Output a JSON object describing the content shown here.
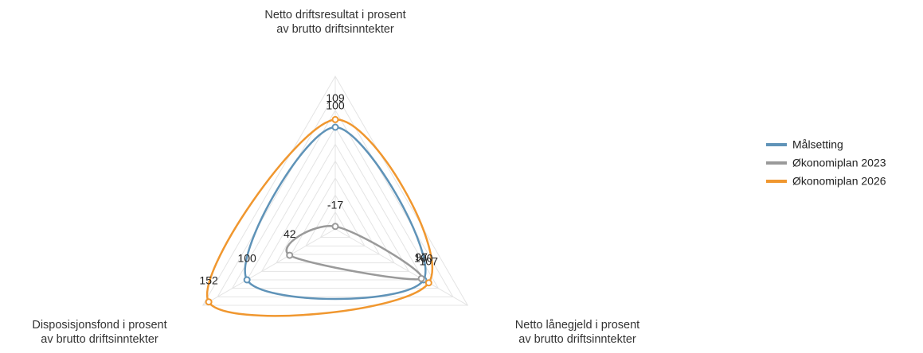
{
  "chart_data": {
    "type": "radar",
    "categories": [
      "Netto driftsresultat i prosent av brutto driftsinntekter",
      "Netto lånegjeld i prosent av brutto driftsinntekter",
      "Disposisjonsfond i prosent av brutto driftsinntekter"
    ],
    "series": [
      {
        "name": "Målsetting",
        "color": "#5f93b8",
        "values": [
          100,
          100,
          100
        ]
      },
      {
        "name": "Økonomiplan 2023",
        "color": "#9a9a9a",
        "values": [
          -17,
          97,
          42
        ]
      },
      {
        "name": "Økonomiplan 2026",
        "color": "#f0972f",
        "values": [
          109,
          107,
          152
        ]
      }
    ],
    "ylim": [
      -20,
      160
    ],
    "yticks": [
      -20,
      0,
      20,
      40,
      60,
      80,
      100,
      120,
      140,
      160
    ],
    "grid": true
  }
}
